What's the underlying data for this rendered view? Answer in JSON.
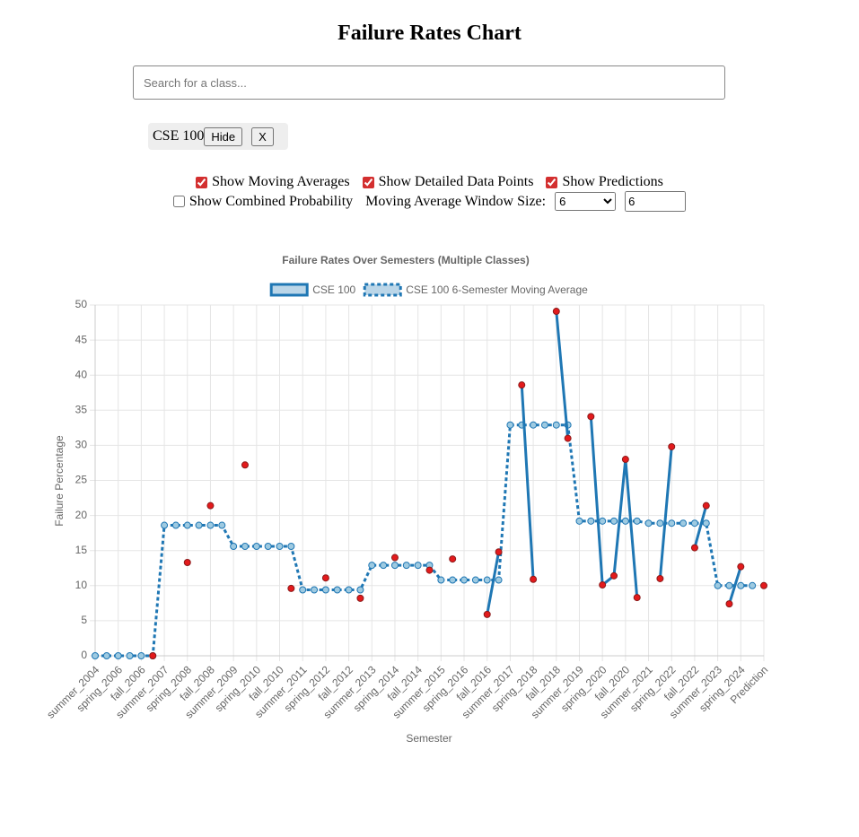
{
  "header": {
    "title": "Failure Rates Chart"
  },
  "search": {
    "placeholder": "Search for a class..."
  },
  "selected_classes": [
    {
      "name": "CSE 100",
      "hide": "Hide",
      "remove": "X"
    }
  ],
  "options": [
    {
      "label": "Show Moving Averages",
      "checked": true
    },
    {
      "label": "Show Detailed Data Points",
      "checked": true
    },
    {
      "label": "Show Predictions",
      "checked": true
    },
    {
      "label": "Show Combined Probability",
      "checked": false
    }
  ],
  "window_size": {
    "label": "Moving Average Window Size:",
    "select": "6",
    "input": "6"
  },
  "chart_data": {
    "type": "line",
    "title": "Failure Rates Over Semesters (Multiple Classes)",
    "x_label": "Semester",
    "y_label": "Failure Percentage",
    "categories": [
      "summer_2004",
      null,
      "spring_2006",
      null,
      "fall_2006",
      null,
      "summer_2007",
      null,
      "spring_2008",
      null,
      "fall_2008",
      null,
      "summer_2009",
      null,
      "spring_2010",
      null,
      "fall_2010",
      null,
      "summer_2011",
      null,
      "spring_2012",
      null,
      "fall_2012",
      null,
      "summer_2013",
      null,
      "spring_2014",
      null,
      "fall_2014",
      null,
      "summer_2015",
      null,
      "spring_2016",
      null,
      "fall_2016",
      null,
      "summer_2017",
      null,
      "spring_2018",
      null,
      "fall_2018",
      null,
      "summer_2019",
      null,
      "spring_2020",
      null,
      "fall_2020",
      null,
      "summer_2021",
      null,
      "spring_2022",
      null,
      "fall_2022",
      null,
      "summer_2023",
      null,
      "spring_2024",
      null,
      "Prediction"
    ],
    "series": [
      {
        "name": "CSE 100",
        "color": "#1f77b4",
        "point_color": "#e31a1c",
        "dashed": false,
        "values": [
          null,
          null,
          null,
          null,
          null,
          0,
          null,
          null,
          13.3,
          null,
          21.4,
          null,
          null,
          27.2,
          null,
          null,
          null,
          9.6,
          null,
          null,
          11.1,
          null,
          null,
          8.2,
          null,
          null,
          14,
          null,
          null,
          12.2,
          null,
          13.8,
          null,
          null,
          5.9,
          14.8,
          null,
          38.6,
          10.9,
          null,
          49.1,
          31,
          null,
          34.1,
          10.1,
          11.4,
          28,
          8.3,
          null,
          11,
          29.8,
          null,
          15.4,
          21.4,
          null,
          7.4,
          12.7,
          null,
          10
        ]
      },
      {
        "name": "CSE 100 6-Semester Moving Average",
        "color": "#1f77b4",
        "point_color": "#9ecae1",
        "dashed": true,
        "values": [
          0,
          0,
          0,
          0,
          0,
          0,
          18.6,
          18.6,
          18.6,
          18.6,
          18.6,
          18.6,
          15.6,
          15.6,
          15.6,
          15.6,
          15.6,
          15.6,
          9.4,
          9.4,
          9.4,
          9.4,
          9.4,
          9.4,
          12.9,
          12.9,
          12.9,
          12.9,
          12.9,
          12.9,
          10.8,
          10.8,
          10.8,
          10.8,
          10.8,
          10.8,
          32.9,
          32.9,
          32.9,
          32.9,
          32.9,
          32.9,
          19.2,
          19.2,
          19.2,
          19.2,
          19.2,
          19.2,
          18.9,
          18.9,
          18.9,
          18.9,
          18.9,
          18.9,
          10,
          10,
          10,
          10,
          null
        ]
      }
    ],
    "ylim": [
      0,
      50
    ],
    "yticks": [
      0,
      5,
      10,
      15,
      20,
      25,
      30,
      35,
      40,
      45,
      50
    ],
    "grid": true,
    "legend": "top"
  }
}
